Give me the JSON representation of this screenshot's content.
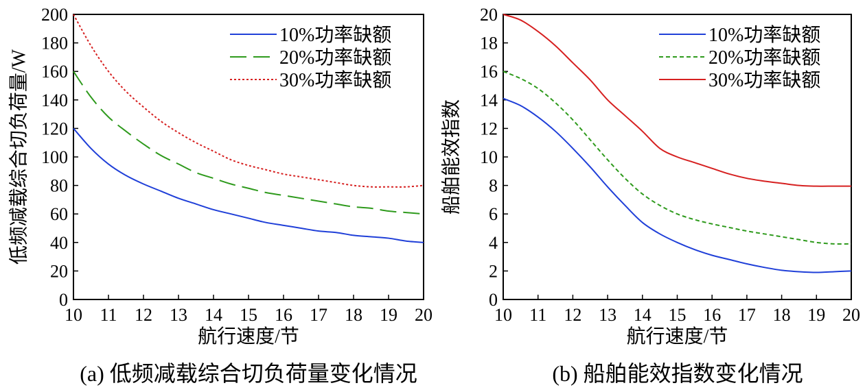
{
  "chart_data": [
    {
      "type": "line",
      "title": "",
      "caption": "(a) 低频减载综合切负荷量变化情况",
      "xlabel": "航行速度/节",
      "ylabel": "低频减载综合切负荷量/W",
      "xlim": [
        10,
        20
      ],
      "ylim": [
        0,
        200
      ],
      "xticks": [
        10,
        11,
        12,
        13,
        14,
        15,
        16,
        17,
        18,
        19,
        20
      ],
      "yticks": [
        0,
        20,
        40,
        60,
        80,
        100,
        120,
        140,
        160,
        180,
        200
      ],
      "legend_position": "top-right",
      "x": [
        10,
        10.5,
        11,
        11.5,
        12,
        12.5,
        13,
        13.5,
        14,
        14.5,
        15,
        15.5,
        16,
        16.5,
        17,
        17.5,
        18,
        18.5,
        19,
        19.5,
        20
      ],
      "series": [
        {
          "name": "10%功率缺额",
          "color": "#1f3fd8",
          "dash": "solid",
          "values": [
            120,
            106,
            95,
            87,
            81,
            76,
            71,
            67,
            63,
            60,
            57,
            54,
            52,
            50,
            48,
            47,
            45,
            44,
            43,
            41,
            40
          ]
        },
        {
          "name": "20%功率缺额",
          "color": "#2e9a1c",
          "dash": "long",
          "values": [
            160,
            142,
            128,
            118,
            109,
            101,
            95,
            89,
            85,
            81,
            78,
            75,
            73,
            71,
            69,
            67,
            65,
            64,
            62,
            61,
            60
          ]
        },
        {
          "name": "30%功率缺额",
          "color": "#d62020",
          "dash": "dot",
          "values": [
            200,
            178,
            160,
            146,
            135,
            125,
            117,
            110,
            104,
            98,
            94,
            91,
            88,
            86,
            84,
            82,
            80,
            79,
            79,
            79,
            80
          ]
        }
      ]
    },
    {
      "type": "line",
      "title": "",
      "caption": "(b) 船舶能效指数变化情况",
      "xlabel": "航行速度/节",
      "ylabel": "船舶能效指数",
      "xlim": [
        10,
        20
      ],
      "ylim": [
        0,
        20
      ],
      "xticks": [
        10,
        11,
        12,
        13,
        14,
        15,
        16,
        17,
        18,
        19,
        20
      ],
      "yticks": [
        0,
        2,
        4,
        6,
        8,
        10,
        12,
        14,
        16,
        18,
        20
      ],
      "legend_position": "top-right",
      "x": [
        10,
        10.5,
        11,
        11.5,
        12,
        12.5,
        13,
        13.5,
        14,
        14.5,
        15,
        15.5,
        16,
        16.5,
        17,
        17.5,
        18,
        18.5,
        19,
        19.5,
        20
      ],
      "series": [
        {
          "name": "10%功率缺额",
          "color": "#1f3fd8",
          "dash": "solid",
          "values": [
            14.1,
            13.6,
            12.8,
            11.8,
            10.6,
            9.3,
            7.9,
            6.6,
            5.4,
            4.6,
            4.0,
            3.5,
            3.1,
            2.8,
            2.5,
            2.25,
            2.05,
            1.95,
            1.9,
            1.95,
            2.0
          ]
        },
        {
          "name": "20%功率缺额",
          "color": "#2e9a1c",
          "dash": "dash",
          "values": [
            16.0,
            15.5,
            14.8,
            13.8,
            12.6,
            11.2,
            9.8,
            8.5,
            7.4,
            6.6,
            6.0,
            5.6,
            5.3,
            5.05,
            4.8,
            4.6,
            4.4,
            4.2,
            4.0,
            3.9,
            3.9
          ]
        },
        {
          "name": "30%功率缺额",
          "color": "#d62020",
          "dash": "solid",
          "values": [
            20.0,
            19.6,
            18.8,
            17.8,
            16.6,
            15.4,
            14.0,
            12.9,
            11.8,
            10.6,
            10.0,
            9.6,
            9.2,
            8.8,
            8.5,
            8.3,
            8.15,
            8.0,
            7.95,
            7.95,
            7.95
          ]
        }
      ]
    }
  ]
}
